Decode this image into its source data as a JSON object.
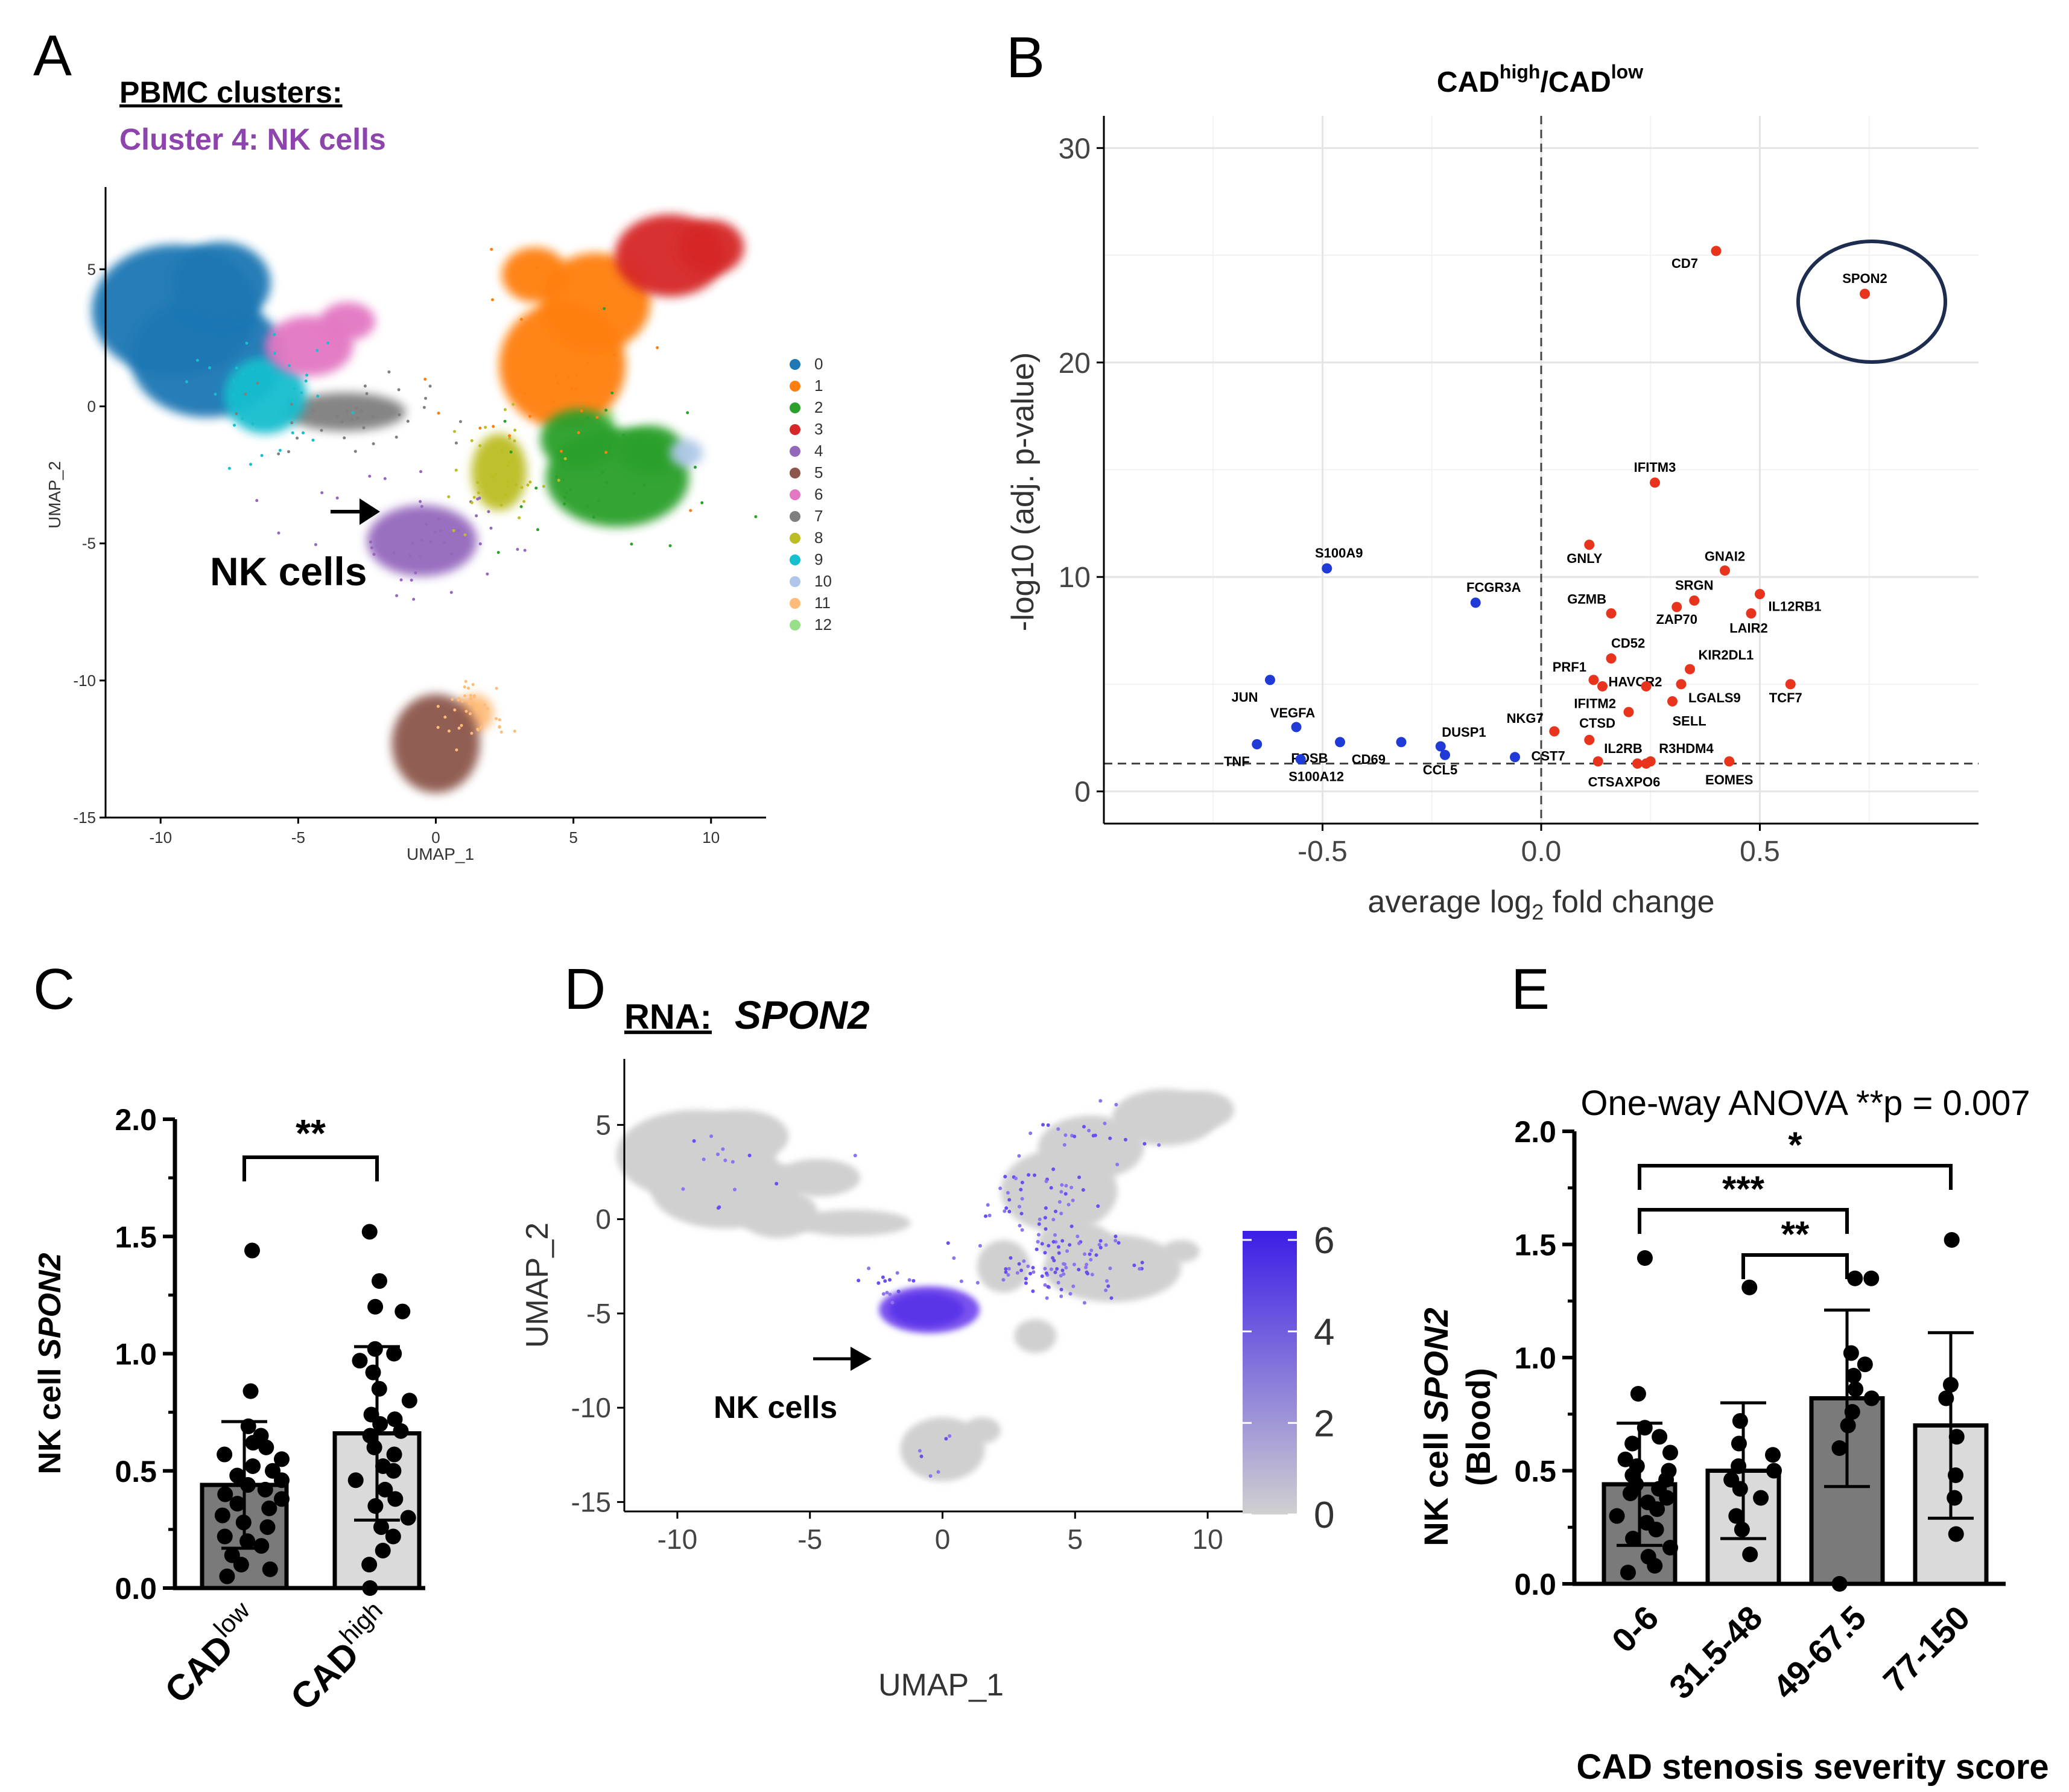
{
  "panels": {
    "A": {
      "letter": "A",
      "header": "PBMC clusters:",
      "subheader": "Cluster 4: NK cells",
      "nk_label": "NK cells",
      "xlabel": "UMAP_1",
      "ylabel": "UMAP_2",
      "xticks": [
        "-10",
        "-5",
        "0",
        "5",
        "10"
      ],
      "yticks": [
        "5",
        "0",
        "-5",
        "-10",
        "-15"
      ],
      "legend": [
        {
          "label": "0",
          "color": "#1f77b4"
        },
        {
          "label": "1",
          "color": "#ff7f0e"
        },
        {
          "label": "2",
          "color": "#2ca02c"
        },
        {
          "label": "3",
          "color": "#d62728"
        },
        {
          "label": "4",
          "color": "#9467bd"
        },
        {
          "label": "5",
          "color": "#8c564b"
        },
        {
          "label": "6",
          "color": "#e377c2"
        },
        {
          "label": "7",
          "color": "#7f7f7f"
        },
        {
          "label": "8",
          "color": "#bcbd22"
        },
        {
          "label": "9",
          "color": "#17becf"
        },
        {
          "label": "10",
          "color": "#aec7e8"
        },
        {
          "label": "11",
          "color": "#ffbb78"
        },
        {
          "label": "12",
          "color": "#98df8a"
        }
      ]
    },
    "B": {
      "letter": "B",
      "title_main": "CAD",
      "title_sup1": "high",
      "title_sep": "/CAD",
      "title_sup2": "low",
      "xlabel_pre": "average log",
      "xlabel_sub": "2",
      "xlabel_post": " fold change",
      "ylabel": "-log10 (adj. p-value)",
      "xticks": [
        "-0.5",
        "0.0",
        "0.5"
      ],
      "yticks": [
        "0",
        "10",
        "20",
        "30"
      ]
    },
    "C": {
      "letter": "C",
      "ylabel_pre": "NK cell ",
      "ylabel_gene": "SPON2",
      "yticks": [
        "0.0",
        "0.5",
        "1.0",
        "1.5",
        "2.0"
      ],
      "sig": "**",
      "cat1_base": "CAD",
      "cat1_sup": "low",
      "cat2_base": "CAD",
      "cat2_sup": "high"
    },
    "D": {
      "letter": "D",
      "rna_label": "RNA:",
      "gene": "SPON2",
      "nk_label": "NK cells",
      "xlabel": "UMAP_1",
      "ylabel": "UMAP_2",
      "xticks": [
        "-10",
        "-5",
        "0",
        "5",
        "10"
      ],
      "yticks": [
        "5",
        "0",
        "-5",
        "-10",
        "-15"
      ],
      "colorbar_ticks": [
        "6",
        "4",
        "2",
        "0"
      ],
      "color_low": "#d0d0d0",
      "color_high": "#3b1ee6"
    },
    "E": {
      "letter": "E",
      "anova": "One-way ANOVA **p = 0.007",
      "ylabel_pre": "NK cell ",
      "ylabel_gene": "SPON2",
      "ylabel_line2": "(Blood)",
      "yticks": [
        "0.0",
        "0.5",
        "1.0",
        "1.5",
        "2.0"
      ],
      "xlabel": "CAD stenosis severity score",
      "sig_labels": [
        "*",
        "***",
        "**"
      ]
    }
  },
  "chart_data": [
    {
      "type": "scatter",
      "panel": "A",
      "title": "PBMC clusters",
      "xlabel": "UMAP_1",
      "ylabel": "UMAP_2",
      "xlim": [
        -12,
        12
      ],
      "ylim": [
        -15,
        8
      ],
      "clusters": [
        {
          "id": "0",
          "center": [
            -8.5,
            2.5
          ]
        },
        {
          "id": "1",
          "center": [
            5,
            2.5
          ]
        },
        {
          "id": "2",
          "center": [
            6,
            -2.5
          ]
        },
        {
          "id": "3",
          "center": [
            9,
            5.5
          ]
        },
        {
          "id": "4",
          "center": [
            -0.5,
            -4.8
          ]
        },
        {
          "id": "5",
          "center": [
            0,
            -12
          ]
        },
        {
          "id": "6",
          "center": [
            -5,
            2.5
          ]
        },
        {
          "id": "7",
          "center": [
            -3,
            -0.5
          ]
        },
        {
          "id": "8",
          "center": [
            2.5,
            -2.5
          ]
        },
        {
          "id": "9",
          "center": [
            -6.5,
            0.5
          ]
        },
        {
          "id": "10",
          "center": [
            9,
            -1.7
          ]
        },
        {
          "id": "11",
          "center": [
            1.5,
            -11
          ]
        },
        {
          "id": "12",
          "center": [
            6,
            -1
          ]
        }
      ]
    },
    {
      "type": "scatter",
      "panel": "B",
      "title": "CADhigh/CADlow",
      "xlabel": "average log2 fold change",
      "ylabel": "-log10 (adj. p-value)",
      "xlim": [
        -1.0,
        1.0
      ],
      "ylim": [
        -1.5,
        31.5
      ],
      "threshold_y": 1.3,
      "threshold_x": 0,
      "points": [
        {
          "label": "CD7",
          "x": 0.4,
          "y": 25.2,
          "dir": "up"
        },
        {
          "label": "SPON2",
          "x": 0.74,
          "y": 23.2,
          "dir": "up"
        },
        {
          "label": "IFITM3",
          "x": 0.26,
          "y": 14.4,
          "dir": "up"
        },
        {
          "label": "GNLY",
          "x": 0.11,
          "y": 11.5,
          "dir": "up"
        },
        {
          "label": "GNAI2",
          "x": 0.42,
          "y": 10.3,
          "dir": "up"
        },
        {
          "label": "SRGN",
          "x": 0.35,
          "y": 8.9,
          "dir": "up"
        },
        {
          "label": "IL12RB1",
          "x": 0.5,
          "y": 9.2,
          "dir": "up"
        },
        {
          "label": "GZMB",
          "x": 0.16,
          "y": 8.3,
          "dir": "up"
        },
        {
          "label": "ZAP70",
          "x": 0.31,
          "y": 8.6,
          "dir": "up"
        },
        {
          "label": "LAIR2",
          "x": 0.48,
          "y": 8.3,
          "dir": "up"
        },
        {
          "label": "CD52",
          "x": 0.16,
          "y": 6.2,
          "dir": "up"
        },
        {
          "label": "KIR2DL1",
          "x": 0.34,
          "y": 5.7,
          "dir": "up"
        },
        {
          "label": "PRF1",
          "x": 0.12,
          "y": 5.2,
          "dir": "up"
        },
        {
          "label": "HAVCR2",
          "x": 0.14,
          "y": 4.9,
          "dir": "up"
        },
        {
          "label": "IFITM2",
          "x": 0.24,
          "y": 4.9,
          "dir": "up"
        },
        {
          "label": "LGALS9",
          "x": 0.32,
          "y": 5.0,
          "dir": "up"
        },
        {
          "label": "TCF7",
          "x": 0.57,
          "y": 5.0,
          "dir": "up"
        },
        {
          "label": "SELL",
          "x": 0.3,
          "y": 4.2,
          "dir": "up"
        },
        {
          "label": "CTSD",
          "x": 0.2,
          "y": 3.7,
          "dir": "up"
        },
        {
          "label": "NKG7",
          "x": 0.03,
          "y": 2.8,
          "dir": "up"
        },
        {
          "label": "CST7",
          "x": 0.11,
          "y": 2.4,
          "dir": "up"
        },
        {
          "label": "IL2RB",
          "x": 0.13,
          "y": 1.4,
          "dir": "up"
        },
        {
          "label": "R3HDM4",
          "x": 0.25,
          "y": 1.4,
          "dir": "up"
        },
        {
          "label": "CTSA",
          "x": 0.22,
          "y": 1.3,
          "dir": "up"
        },
        {
          "label": "XPO6",
          "x": 0.24,
          "y": 1.3,
          "dir": "up"
        },
        {
          "label": "EOMES",
          "x": 0.43,
          "y": 1.4,
          "dir": "up"
        },
        {
          "label": "S100A9",
          "x": -0.49,
          "y": 10.4,
          "dir": "down"
        },
        {
          "label": "FCGR3A",
          "x": -0.15,
          "y": 8.8,
          "dir": "down"
        },
        {
          "label": "JUN",
          "x": -0.62,
          "y": 5.2,
          "dir": "down"
        },
        {
          "label": "VEGFA",
          "x": -0.56,
          "y": 3.0,
          "dir": "down"
        },
        {
          "label": "TNF",
          "x": -0.65,
          "y": 2.2,
          "dir": "down"
        },
        {
          "label": "FOSB",
          "x": -0.46,
          "y": 2.3,
          "dir": "down"
        },
        {
          "label": "S100A12",
          "x": -0.55,
          "y": 1.5,
          "dir": "down"
        },
        {
          "label": "CD69",
          "x": -0.32,
          "y": 2.3,
          "dir": "down"
        },
        {
          "label": "DUSP1",
          "x": -0.23,
          "y": 2.1,
          "dir": "down"
        },
        {
          "label": "CCL5",
          "x": -0.22,
          "y": 1.7,
          "dir": "down"
        },
        {
          "label": "",
          "x": -0.06,
          "y": 1.6,
          "dir": "down"
        }
      ]
    },
    {
      "type": "bar",
      "panel": "C",
      "ylabel": "NK cell SPON2",
      "ylim": [
        0,
        2.0
      ],
      "categories": [
        "CADlow",
        "CADhigh"
      ],
      "values": [
        0.44,
        0.66
      ],
      "errors": [
        0.27,
        0.37
      ],
      "colors": [
        "#7a7a7a",
        "#dadada"
      ],
      "points": [
        [
          1.44,
          0.84,
          0.69,
          0.65,
          0.62,
          0.6,
          0.57,
          0.55,
          0.52,
          0.5,
          0.48,
          0.46,
          0.44,
          0.42,
          0.4,
          0.38,
          0.36,
          0.34,
          0.31,
          0.28,
          0.26,
          0.22,
          0.2,
          0.18,
          0.14,
          0.1,
          0.08,
          0.05
        ],
        [
          1.52,
          1.31,
          1.2,
          1.18,
          1.02,
          1.0,
          0.97,
          0.92,
          0.85,
          0.8,
          0.74,
          0.72,
          0.7,
          0.67,
          0.65,
          0.6,
          0.57,
          0.52,
          0.5,
          0.46,
          0.42,
          0.38,
          0.35,
          0.3,
          0.26,
          0.22,
          0.16,
          0.1,
          0.0
        ]
      ],
      "significance": [
        {
          "pair": [
            0,
            1
          ],
          "label": "**"
        }
      ]
    },
    {
      "type": "scatter",
      "panel": "D",
      "title": "RNA: SPON2",
      "xlabel": "UMAP_1",
      "ylabel": "UMAP_2",
      "xlim": [
        -12,
        12
      ],
      "ylim": [
        -15.5,
        8.5
      ],
      "colorbar": {
        "min": 0,
        "max": 6,
        "ticks": [
          0,
          2,
          4,
          6
        ]
      },
      "highlight_cluster": "NK cells",
      "highlight_center": [
        -0.5,
        -4.8
      ]
    },
    {
      "type": "bar",
      "panel": "E",
      "title": "One-way ANOVA **p = 0.007",
      "xlabel": "CAD stenosis severity score",
      "ylabel": "NK cell SPON2 (Blood)",
      "ylim": [
        0,
        2.0
      ],
      "categories": [
        "0-6",
        "31.5-48",
        "49-67.5",
        "77-150"
      ],
      "values": [
        0.44,
        0.5,
        0.82,
        0.7
      ],
      "errors": [
        0.27,
        0.3,
        0.39,
        0.41
      ],
      "colors": [
        "#7a7a7a",
        "#dadada",
        "#7a7a7a",
        "#dadada"
      ],
      "points": [
        [
          1.44,
          0.84,
          0.69,
          0.65,
          0.62,
          0.58,
          0.55,
          0.52,
          0.5,
          0.48,
          0.46,
          0.44,
          0.42,
          0.4,
          0.38,
          0.36,
          0.33,
          0.3,
          0.27,
          0.24,
          0.2,
          0.16,
          0.12,
          0.08,
          0.05
        ],
        [
          1.31,
          0.72,
          0.62,
          0.57,
          0.52,
          0.5,
          0.46,
          0.42,
          0.38,
          0.3,
          0.24,
          0.13
        ],
        [
          1.35,
          1.35,
          1.02,
          0.97,
          0.92,
          0.86,
          0.82,
          0.76,
          0.7,
          0.6,
          0.0
        ],
        [
          1.52,
          0.88,
          0.82,
          0.65,
          0.48,
          0.38,
          0.22
        ]
      ],
      "significance": [
        {
          "pair": [
            0,
            3
          ],
          "label": "*"
        },
        {
          "pair": [
            0,
            2
          ],
          "label": "***"
        },
        {
          "pair": [
            1,
            2
          ],
          "label": "**"
        }
      ]
    }
  ]
}
